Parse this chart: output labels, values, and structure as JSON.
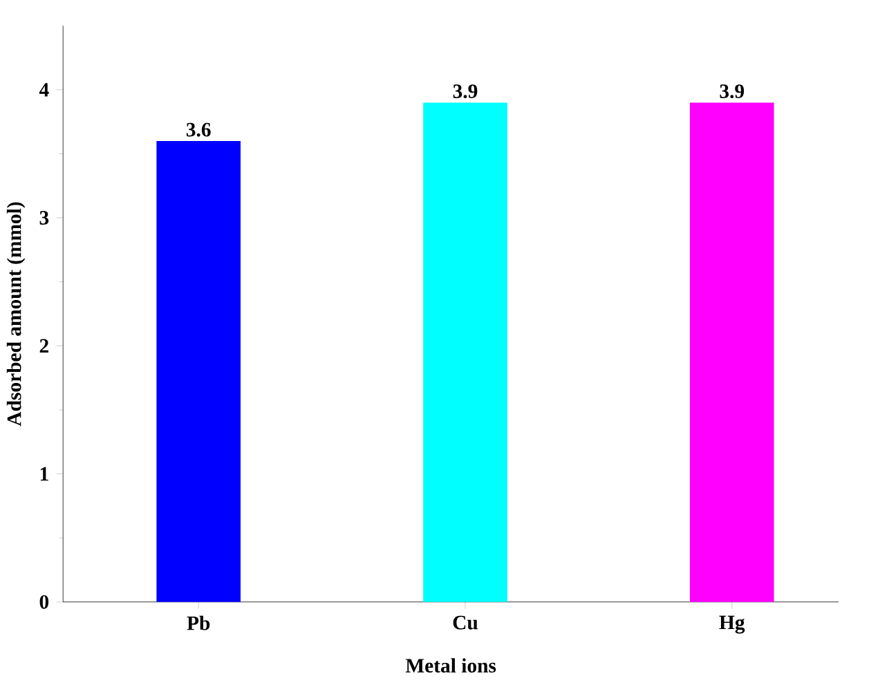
{
  "chart_data": {
    "type": "bar",
    "xlabel": "Metal ions",
    "ylabel": "Adsorbed amount (mmol)",
    "categories": [
      "Pb",
      "Cu",
      "Hg"
    ],
    "values": [
      3.6,
      3.9,
      3.9
    ],
    "colors": [
      "#0000ff",
      "#00ffff",
      "#ff00ff"
    ],
    "ylim": [
      0,
      4.5
    ],
    "yticks": [
      0,
      1,
      2,
      3,
      4
    ],
    "data_labels": true
  }
}
